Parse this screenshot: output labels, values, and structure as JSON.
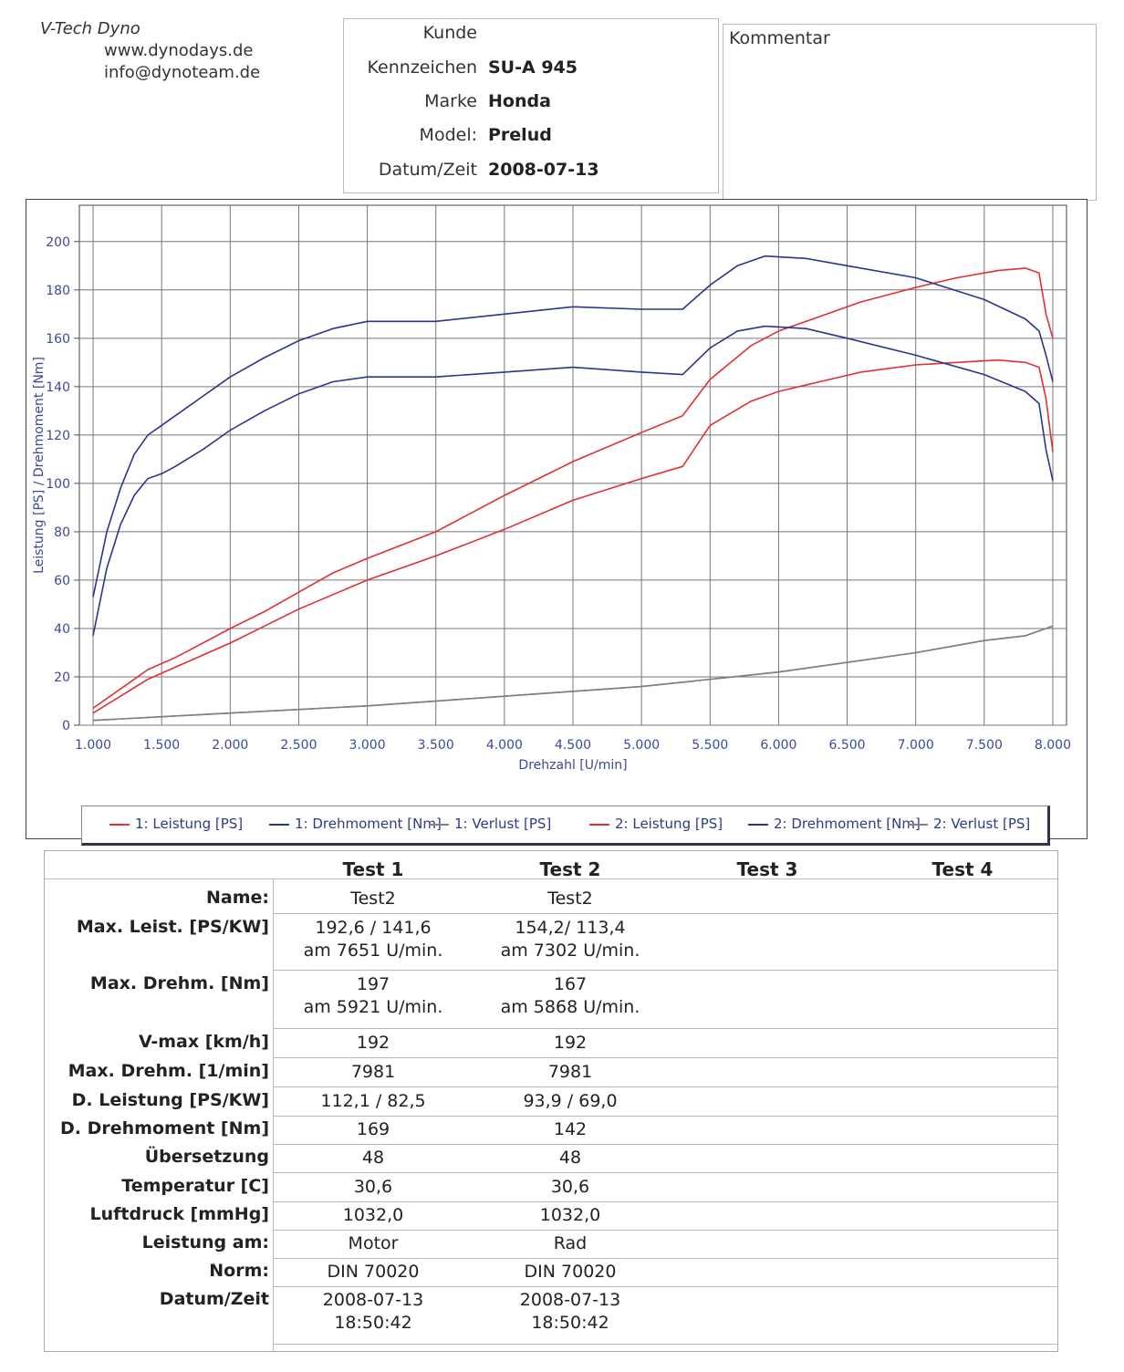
{
  "header": {
    "company": "V-Tech Dyno",
    "website": "www.dynodays.de",
    "email": "info@dynoteam.de"
  },
  "vehicle": {
    "kunde_label": "Kunde",
    "kunde_value": "",
    "kennzeichen_label": "Kennzeichen",
    "kennzeichen_value": "SU-A 945",
    "marke_label": "Marke",
    "marke_value": "Honda",
    "model_label": "Model:",
    "model_value": "Prelud",
    "datum_label": "Datum/Zeit",
    "datum_value": "2008-07-13"
  },
  "comment": {
    "label": "Kommentar"
  },
  "chart_data": {
    "type": "line",
    "title": "",
    "xlabel": "Drehzahl [U/min]",
    "ylabel": "Leistung [PS] / Drehmoment [Nm]",
    "xlim": [
      900,
      8100
    ],
    "ylim": [
      0,
      215
    ],
    "x_ticks": [
      1000,
      1500,
      2000,
      2500,
      3000,
      3500,
      4000,
      4500,
      5000,
      5500,
      6000,
      6500,
      7000,
      7500,
      8000
    ],
    "x_tick_labels": [
      "1.000",
      "1.500",
      "2.000",
      "2.500",
      "3.000",
      "3.500",
      "4.000",
      "4.500",
      "5.000",
      "5.500",
      "6.000",
      "6.500",
      "7.000",
      "7.500",
      "8.000"
    ],
    "y_ticks": [
      0,
      20,
      40,
      60,
      80,
      100,
      120,
      140,
      160,
      180,
      200
    ],
    "grid": true,
    "legend_position": "bottom",
    "series": [
      {
        "name": "1: Leistung [PS]",
        "color": "#e03030",
        "x": [
          1000,
          1200,
          1400,
          1600,
          1800,
          2000,
          2250,
          2500,
          2750,
          3000,
          3500,
          4000,
          4500,
          5000,
          5300,
          5500,
          5800,
          6000,
          6300,
          6600,
          7000,
          7300,
          7600,
          7800,
          7900,
          7950,
          8000
        ],
        "y": [
          7,
          15,
          23,
          28,
          34,
          40,
          47,
          55,
          63,
          69,
          80,
          95,
          109,
          121,
          128,
          143,
          157,
          163,
          169,
          175,
          181,
          185,
          188,
          189,
          187,
          170,
          160
        ]
      },
      {
        "name": "1: Drehmoment [Nm]",
        "color": "#2a3590",
        "x": [
          1000,
          1100,
          1200,
          1300,
          1400,
          1500,
          1600,
          1800,
          2000,
          2250,
          2500,
          2750,
          3000,
          3500,
          4000,
          4500,
          5000,
          5300,
          5500,
          5700,
          5900,
          6200,
          6500,
          7000,
          7500,
          7800,
          7900,
          7950,
          8000
        ],
        "y": [
          53,
          80,
          98,
          112,
          120,
          124,
          128,
          136,
          144,
          152,
          159,
          164,
          167,
          167,
          170,
          173,
          172,
          172,
          182,
          190,
          194,
          193,
          190,
          185,
          176,
          168,
          163,
          153,
          142
        ]
      },
      {
        "name": "1: Verlust [PS]",
        "color": "#808080",
        "x": [
          1000,
          2000,
          3000,
          4000,
          5000,
          6000,
          7000,
          7500,
          7800,
          8000
        ],
        "y": [
          2,
          5,
          8,
          12,
          16,
          22,
          30,
          35,
          37,
          41
        ]
      },
      {
        "name": "2: Leistung [PS]",
        "color": "#e03030",
        "x": [
          1000,
          1200,
          1400,
          1600,
          1800,
          2000,
          2250,
          2500,
          2750,
          3000,
          3500,
          4000,
          4500,
          5000,
          5300,
          5500,
          5800,
          6000,
          6300,
          6600,
          7000,
          7300,
          7600,
          7800,
          7900,
          7950,
          8000
        ],
        "y": [
          5,
          12,
          19,
          24,
          29,
          34,
          41,
          48,
          54,
          60,
          70,
          81,
          93,
          102,
          107,
          124,
          134,
          138,
          142,
          146,
          149,
          150,
          151,
          150,
          148,
          135,
          113
        ]
      },
      {
        "name": "2: Drehmoment [Nm]",
        "color": "#2a3590",
        "x": [
          1000,
          1100,
          1200,
          1300,
          1400,
          1500,
          1600,
          1800,
          2000,
          2250,
          2500,
          2750,
          3000,
          3500,
          4000,
          4500,
          5000,
          5300,
          5500,
          5700,
          5900,
          6200,
          6500,
          7000,
          7500,
          7800,
          7900,
          7950,
          8000
        ],
        "y": [
          37,
          65,
          83,
          95,
          102,
          104,
          107,
          114,
          122,
          130,
          137,
          142,
          144,
          144,
          146,
          148,
          146,
          145,
          156,
          163,
          165,
          164,
          160,
          153,
          145,
          138,
          133,
          114,
          101
        ]
      },
      {
        "name": "2: Verlust [PS]",
        "color": "#808080",
        "x": [
          1000,
          2000,
          3000,
          4000,
          5000,
          6000,
          7000,
          7500,
          7800,
          8000
        ],
        "y": [
          2,
          5,
          8,
          12,
          16,
          22,
          30,
          35,
          37,
          41
        ]
      }
    ]
  },
  "results": {
    "columns": [
      "Test 1",
      "Test 2",
      "Test 3",
      "Test 4"
    ],
    "rows": [
      {
        "label": "Name:",
        "values": [
          "Test2",
          "Test2"
        ]
      },
      {
        "label": "Max. Leist. [PS/KW]",
        "values": [
          "192,6 / 141,6\nam 7651 U/min.",
          "154,2/ 113,4\nam 7302 U/min."
        ]
      },
      {
        "label": "Max. Drehm. [Nm]",
        "values": [
          "197\nam 5921 U/min.",
          "167\nam 5868 U/min."
        ]
      },
      {
        "label": "V-max [km/h]",
        "values": [
          "192",
          "192"
        ]
      },
      {
        "label": "Max. Drehm. [1/min]",
        "values": [
          "7981",
          "7981"
        ]
      },
      {
        "label": "D. Leistung [PS/KW]",
        "values": [
          "112,1 / 82,5",
          "93,9 / 69,0"
        ]
      },
      {
        "label": "D. Drehmoment [Nm]",
        "values": [
          "169",
          "142"
        ]
      },
      {
        "label": "Übersetzung",
        "values": [
          "48",
          "48"
        ]
      },
      {
        "label": "Temperatur [C]",
        "values": [
          "30,6",
          "30,6"
        ]
      },
      {
        "label": "Luftdruck [mmHg]",
        "values": [
          "1032,0",
          "1032,0"
        ]
      },
      {
        "label": "Leistung am:",
        "values": [
          "Motor",
          "Rad"
        ]
      },
      {
        "label": "Norm:",
        "values": [
          "DIN 70020",
          "DIN 70020"
        ]
      },
      {
        "label": "Datum/Zeit",
        "values": [
          "2008-07-13\n18:50:42",
          "2008-07-13\n18:50:42"
        ]
      }
    ]
  }
}
